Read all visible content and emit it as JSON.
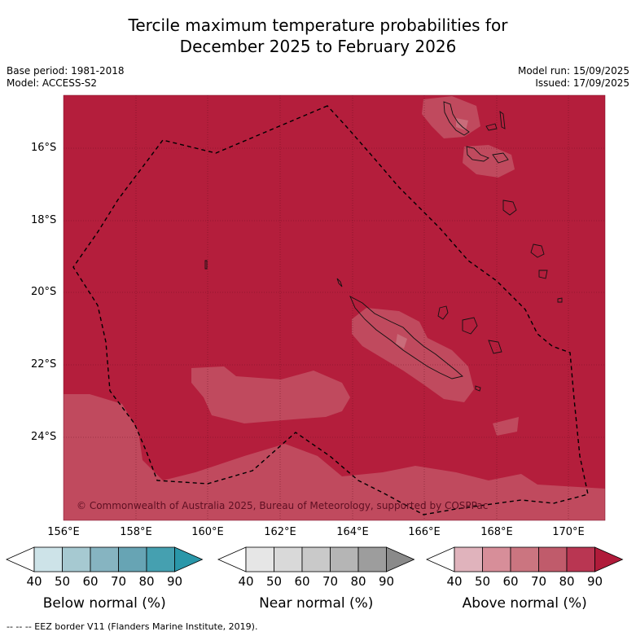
{
  "title_line1": "Tercile maximum temperature probabilities for",
  "title_line2": "December 2025 to February 2026",
  "base_period": "Base period: 1981-2018",
  "model": "Model: ACCESS-S2",
  "model_run": "Model run: 15/09/2025",
  "issued": "Issued: 17/09/2025",
  "copyright": "© Commonwealth of Australia 2025, Bureau of Meteorology, supported by COSPPac",
  "lat_labels": [
    "16°S",
    "18°S",
    "20°S",
    "22°S",
    "24°S"
  ],
  "lon_labels": [
    "156°E",
    "158°E",
    "160°E",
    "162°E",
    "164°E",
    "166°E",
    "168°E",
    "170°E"
  ],
  "colorbars": [
    {
      "label": "Below normal (%)",
      "colors": [
        "#cde3e8",
        "#a6c9d1",
        "#86b4c1",
        "#67a4b4",
        "#45a0b0"
      ],
      "end_color": "#2a97a9",
      "ticks": [
        "40",
        "50",
        "60",
        "70",
        "80",
        "90"
      ]
    },
    {
      "label": "Near normal (%)",
      "colors": [
        "#e6e6e6",
        "#d9d9d9",
        "#c9c9c9",
        "#b5b5b5",
        "#9d9d9d"
      ],
      "end_color": "#8a8a8a",
      "ticks": [
        "40",
        "50",
        "60",
        "70",
        "80",
        "90"
      ]
    },
    {
      "label": "Above normal (%)",
      "colors": [
        "#e0b3bc",
        "#d78e99",
        "#cb7580",
        "#c05b6b",
        "#b93652"
      ],
      "end_color": "#b01b3a",
      "ticks": [
        "40",
        "50",
        "60",
        "70",
        "80",
        "90"
      ]
    }
  ],
  "footer": "--  --  -- EEZ border V11 (Flanders Marine Institute, 2019).",
  "colors": {
    "above_80": "#b41e3c",
    "above_70": "#c04a5e",
    "above_60": "#c96c7a"
  }
}
